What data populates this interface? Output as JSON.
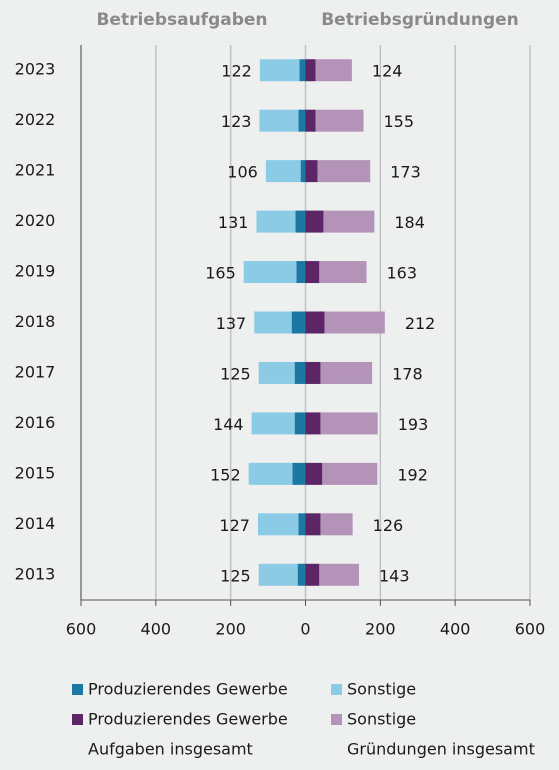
{
  "chart_data": {
    "type": "butterfly",
    "left_title": "Betriebsaufgaben",
    "right_title": "Betriebsgründungen",
    "categories": [
      "2023",
      "2022",
      "2021",
      "2020",
      "2019",
      "2018",
      "2017",
      "2016",
      "2015",
      "2014",
      "2013"
    ],
    "series": [
      {
        "name": "Produzierendes Gewerbe",
        "color": "#1a78a3",
        "values": [
          -16,
          -19,
          -13,
          -27,
          -24,
          -37,
          -29,
          -29,
          -35,
          -19,
          -21
        ]
      },
      {
        "name": "Sonstige",
        "color": "#8ccbe5",
        "values": [
          -106,
          -104,
          -93,
          -104,
          -141,
          -100,
          -96,
          -115,
          -117,
          -108,
          -104
        ]
      },
      {
        "name": "Produzierendes Gewerbe",
        "color": "#5b2566",
        "values": [
          27,
          27,
          32,
          48,
          37,
          51,
          40,
          40,
          45,
          40,
          37
        ]
      },
      {
        "name": "Sonstige",
        "color": "#b493b9",
        "values": [
          97,
          128,
          141,
          136,
          126,
          161,
          138,
          153,
          147,
          86,
          106
        ]
      },
      {
        "name": "Aufgaben insgesamt",
        "values": [
          -122,
          -123,
          -106,
          -131,
          -165,
          -137,
          -125,
          -144,
          -152,
          -127,
          -125
        ],
        "value_labels": [
          "122",
          "123",
          "106",
          "131",
          "165",
          "137",
          "125",
          "144",
          "152",
          "127",
          "125"
        ]
      },
      {
        "name": "Gründungen insgesamt",
        "values": [
          124,
          155,
          173,
          184,
          163,
          212,
          178,
          193,
          192,
          126,
          143
        ]
      }
    ],
    "xlim": [
      -600,
      600
    ],
    "xticks": [
      {
        "value": -600,
        "label": "600"
      },
      {
        "value": -400,
        "label": "400"
      },
      {
        "value": -200,
        "label": "200"
      },
      0,
      200,
      400,
      600
    ],
    "grid": true
  }
}
